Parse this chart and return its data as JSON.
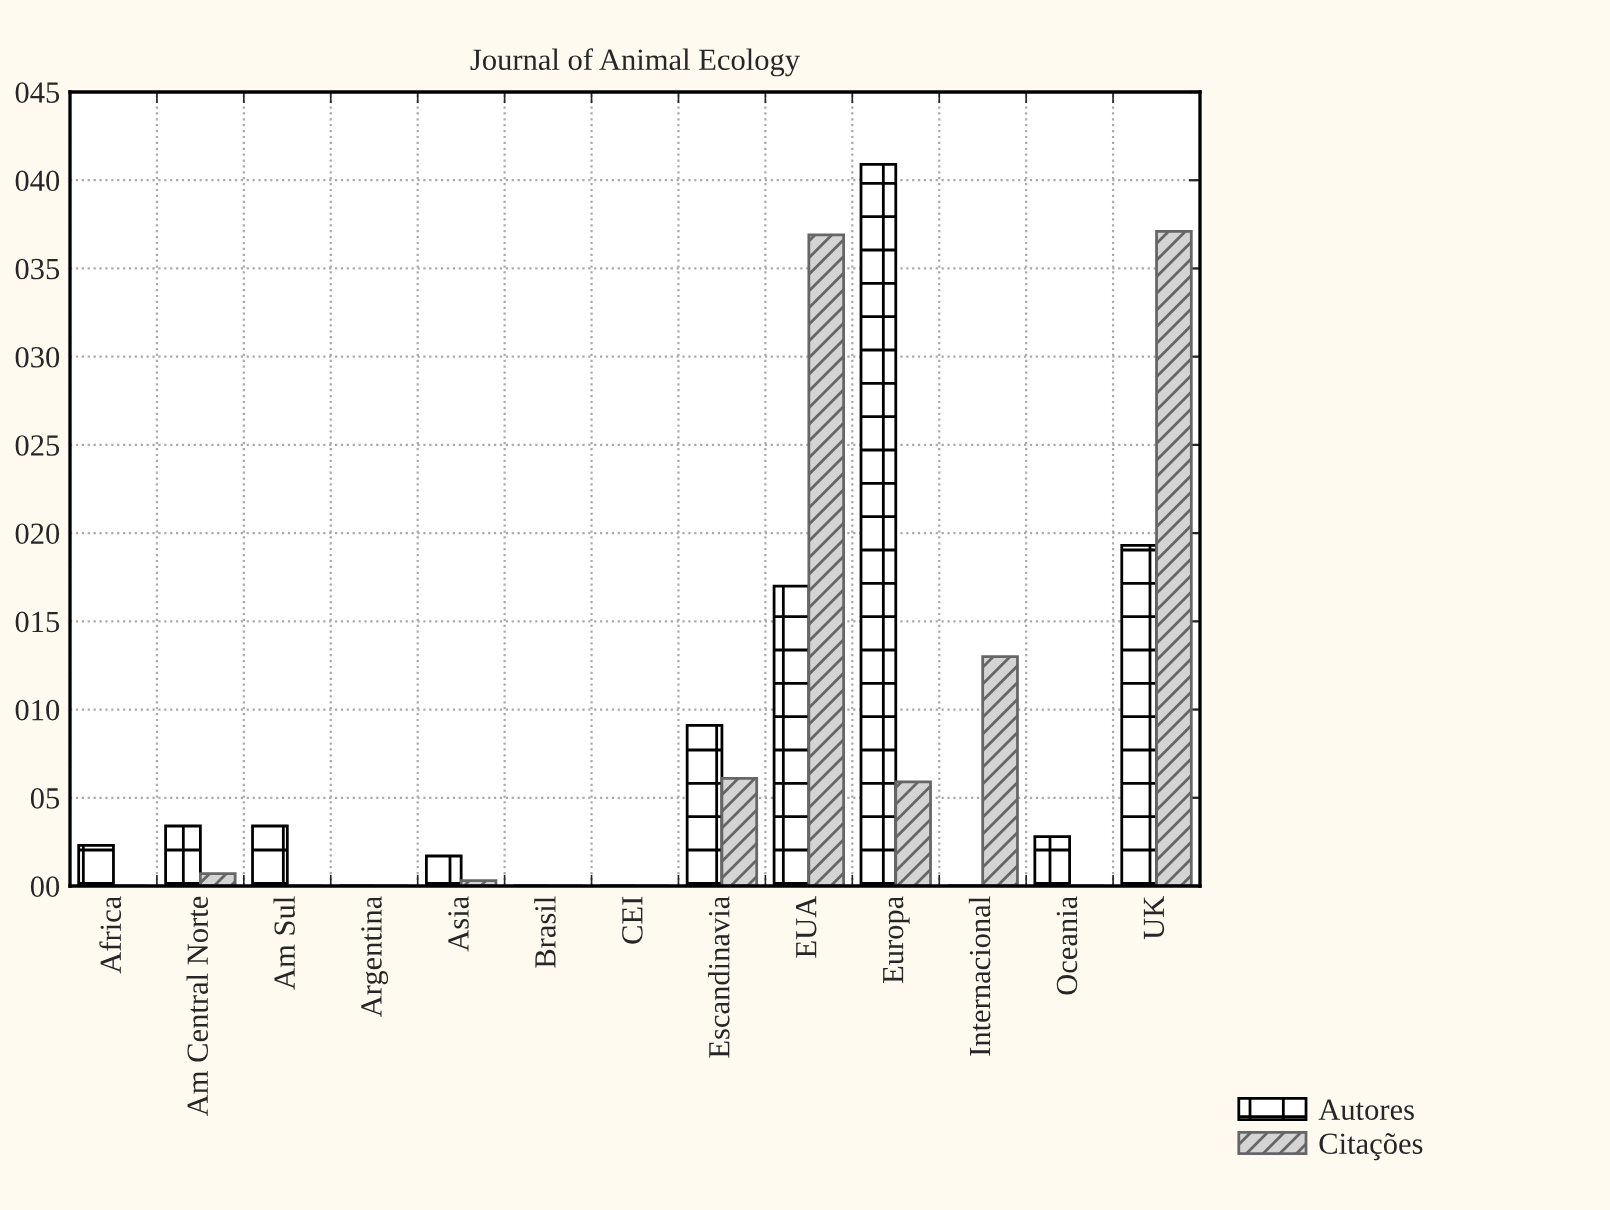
{
  "chart_data": {
    "type": "bar",
    "title": "Journal of Animal Ecology",
    "categories": [
      "Africa",
      "Am Central Norte",
      "Am Sul",
      "Argentina",
      "Asia",
      "Brasil",
      "CEI",
      "Escandinavia",
      "EUA",
      "Europa",
      "Internacional",
      "Oceania",
      "UK"
    ],
    "series": [
      {
        "name": "Autores",
        "color": "#000000",
        "values": [
          2.3,
          3.4,
          3.4,
          0,
          1.7,
          0,
          0,
          9.1,
          17.0,
          40.9,
          0,
          2.8,
          19.3
        ]
      },
      {
        "name": "Citações",
        "color": "#666666",
        "values": [
          0,
          0.7,
          0,
          0,
          0.3,
          0,
          0,
          6.1,
          36.9,
          5.9,
          13.0,
          0,
          37.1
        ]
      }
    ],
    "ylim": [
      0,
      45
    ],
    "yticks": [
      {
        "value": 0,
        "label": "00"
      },
      {
        "value": 5,
        "label": "05"
      },
      {
        "value": 10,
        "label": "010"
      },
      {
        "value": 15,
        "label": "015"
      },
      {
        "value": 20,
        "label": "020"
      },
      {
        "value": 25,
        "label": "025"
      },
      {
        "value": 30,
        "label": "030"
      },
      {
        "value": 35,
        "label": "035"
      },
      {
        "value": 40,
        "label": "040"
      },
      {
        "value": 45,
        "label": "045"
      }
    ],
    "grid": true,
    "legend": "bottom right"
  }
}
